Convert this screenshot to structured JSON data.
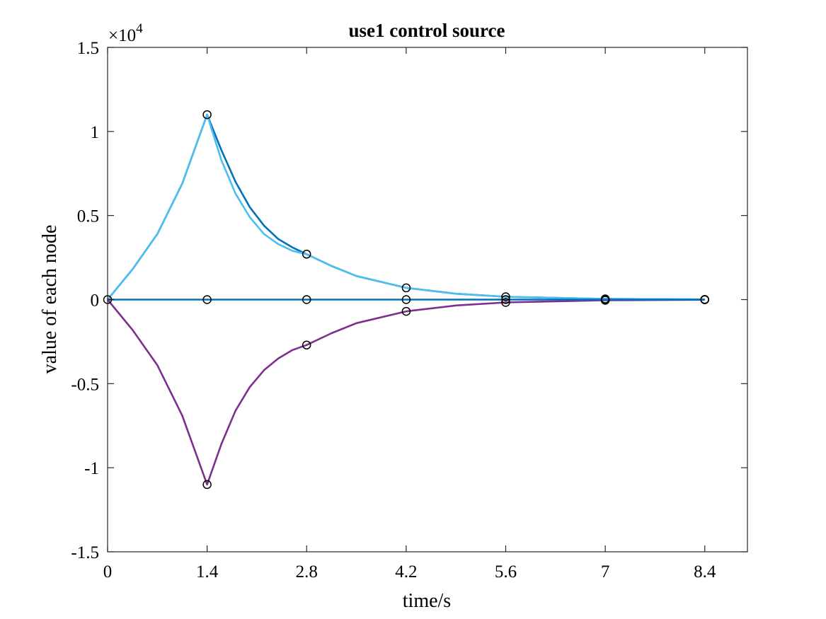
{
  "chart_data": {
    "type": "line",
    "title": "use1 control source",
    "xlabel": "time/s",
    "ylabel": "value of each node",
    "y_exponent_label": {
      "base": "×10",
      "exponent": "4"
    },
    "xlim": [
      0,
      9.0
    ],
    "ylim": [
      -15000,
      15000
    ],
    "xticks": [
      0,
      1.4,
      2.8,
      4.2,
      5.6,
      7,
      8.4
    ],
    "xtick_labels": [
      "0",
      "1.4",
      "2.8",
      "4.2",
      "5.6",
      "7",
      "8.4"
    ],
    "yticks": [
      -15000,
      -10000,
      -5000,
      0,
      5000,
      10000,
      15000
    ],
    "ytick_labels": [
      "-1.5",
      "-1",
      "-0.5",
      "0",
      "0.5",
      "1",
      "1.5"
    ],
    "grid": false,
    "series": [
      {
        "color": "#0072bd",
        "x": [
          0,
          0.35,
          0.7,
          1.05,
          1.4,
          1.6,
          1.8,
          2.0,
          2.2,
          2.4,
          2.6,
          2.8,
          3.15,
          3.5,
          4.2,
          4.9,
          5.6,
          7,
          8.4
        ],
        "y": [
          0,
          1800,
          3900,
          6900,
          11000,
          8900,
          7000,
          5500,
          4400,
          3600,
          3100,
          2700,
          2000,
          1400,
          700,
          350,
          170,
          40,
          10
        ]
      },
      {
        "color": "#4dbeee",
        "x": [
          0,
          0.35,
          0.7,
          1.05,
          1.4,
          1.6,
          1.8,
          2.0,
          2.2,
          2.4,
          2.6,
          2.8,
          3.15,
          3.5,
          4.2,
          4.9,
          5.6,
          7,
          8.4
        ],
        "y": [
          0,
          1800,
          3900,
          6900,
          11000,
          8300,
          6300,
          4900,
          3900,
          3300,
          2900,
          2700,
          2000,
          1400,
          700,
          350,
          170,
          40,
          10
        ]
      },
      {
        "color": "#7e2f8e",
        "x": [
          0,
          0.35,
          0.7,
          1.05,
          1.4,
          1.6,
          1.8,
          2.0,
          2.2,
          2.4,
          2.6,
          2.8,
          3.15,
          3.5,
          4.2,
          4.9,
          5.6,
          7,
          8.4
        ],
        "y": [
          0,
          -1800,
          -3900,
          -6900,
          -11000,
          -8600,
          -6600,
          -5200,
          -4200,
          -3500,
          -3000,
          -2700,
          -2000,
          -1400,
          -700,
          -350,
          -170,
          -40,
          -10
        ]
      },
      {
        "color": "#0072bd",
        "x": [
          0,
          8.4
        ],
        "y": [
          0,
          0
        ]
      }
    ],
    "markers": {
      "style": "open-circle",
      "color": "#000000",
      "points": [
        [
          0,
          0
        ],
        [
          1.4,
          11000
        ],
        [
          1.4,
          0
        ],
        [
          1.4,
          -11000
        ],
        [
          2.8,
          2700
        ],
        [
          2.8,
          0
        ],
        [
          2.8,
          -2700
        ],
        [
          4.2,
          700
        ],
        [
          4.2,
          0
        ],
        [
          4.2,
          -700
        ],
        [
          5.6,
          170
        ],
        [
          5.6,
          0
        ],
        [
          5.6,
          -170
        ],
        [
          7,
          40
        ],
        [
          7,
          0
        ],
        [
          7,
          -40
        ],
        [
          8.4,
          10
        ],
        [
          8.4,
          0
        ],
        [
          8.4,
          -10
        ]
      ]
    }
  }
}
